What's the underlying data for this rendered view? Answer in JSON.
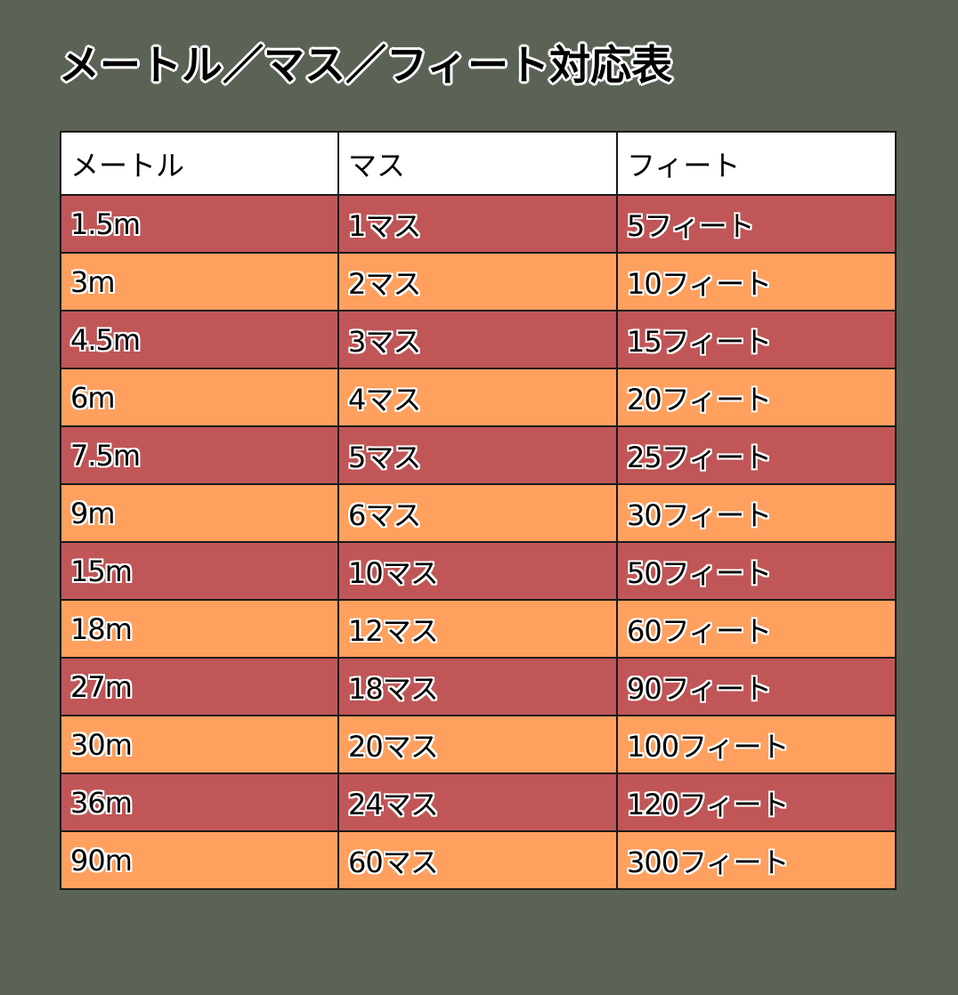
{
  "title": "メートル／マス／フィート対応表",
  "colors": {
    "background": "#5a6356",
    "header_row": "#ffffff",
    "row_odd": "#c05657",
    "row_even": "#ffa05f",
    "border": "#1a1a1a"
  },
  "table": {
    "headers": [
      "メートル",
      "マス",
      "フィート"
    ],
    "rows": [
      [
        "1.5m",
        "1マス",
        "5フィート"
      ],
      [
        "3m",
        "2マス",
        "10フィート"
      ],
      [
        "4.5m",
        "3マス",
        "15フィート"
      ],
      [
        "6m",
        "4マス",
        "20フィート"
      ],
      [
        "7.5m",
        "5マス",
        "25フィート"
      ],
      [
        "9m",
        "6マス",
        "30フィート"
      ],
      [
        "15m",
        "10マス",
        "50フィート"
      ],
      [
        "18m",
        "12マス",
        "60フィート"
      ],
      [
        "27m",
        "18マス",
        "90フィート"
      ],
      [
        "30m",
        "20マス",
        "100フィート"
      ],
      [
        "36m",
        "24マス",
        "120フィート"
      ],
      [
        "90m",
        "60マス",
        "300フィート"
      ]
    ]
  }
}
